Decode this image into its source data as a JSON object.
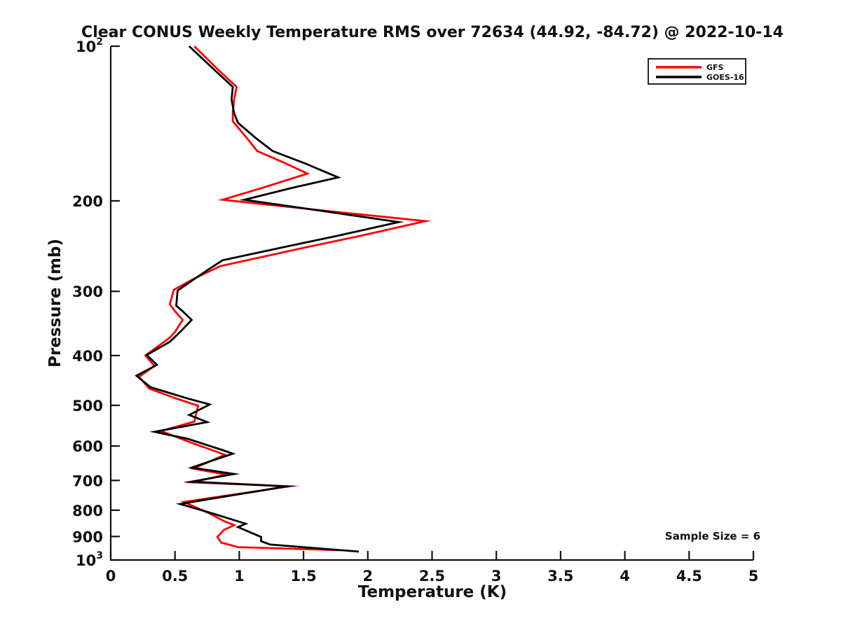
{
  "chart_data": {
    "type": "line",
    "title": "Clear CONUS Weekly Temperature RMS over 72634 (44.92, -84.72) @ 2022-10-14",
    "xlabel": "Temperature (K)",
    "ylabel": "Pressure (mb)",
    "x_axis": {
      "min": 0,
      "max": 5,
      "ticks": [
        0,
        0.5,
        1,
        1.5,
        2,
        2.5,
        3,
        3.5,
        4,
        4.5,
        5
      ],
      "tick_labels": [
        "0",
        "0.5",
        "1",
        "1.5",
        "2",
        "2.5",
        "3",
        "3.5",
        "4",
        "4.5",
        "5"
      ]
    },
    "y_axis": {
      "scale": "log",
      "min": 100,
      "max": 1000,
      "direction": "increasing-downward",
      "ticks": [
        100,
        200,
        300,
        400,
        500,
        600,
        700,
        800,
        900,
        1000
      ],
      "tick_labels": [
        "10^2",
        "200",
        "300",
        "400",
        "500",
        "600",
        "700",
        "800",
        "900",
        "10^3"
      ]
    },
    "legend": {
      "position": "top-right",
      "entries": [
        "GFS",
        "GOES-16"
      ]
    },
    "annotations": {
      "sample_size": "Sample Size = 6"
    },
    "axis_color": "#111111",
    "series": [
      {
        "name": "GFS",
        "color": "#ff0000",
        "points_format": [
          "temperature_K",
          "pressure_mb"
        ],
        "points": [
          [
            0.65,
            100
          ],
          [
            0.85,
            112
          ],
          [
            0.98,
            120
          ],
          [
            0.96,
            127
          ],
          [
            0.95,
            134
          ],
          [
            0.95,
            140
          ],
          [
            1.06,
            151
          ],
          [
            1.14,
            160
          ],
          [
            1.36,
            169
          ],
          [
            1.53,
            177
          ],
          [
            1.17,
            189
          ],
          [
            0.87,
            199
          ],
          [
            1.74,
            210
          ],
          [
            2.45,
            219
          ],
          [
            1.94,
            234
          ],
          [
            1.53,
            246
          ],
          [
            0.85,
            268
          ],
          [
            0.63,
            285
          ],
          [
            0.49,
            298
          ],
          [
            0.46,
            318
          ],
          [
            0.5,
            328
          ],
          [
            0.56,
            341
          ],
          [
            0.5,
            360
          ],
          [
            0.46,
            369
          ],
          [
            0.27,
            400
          ],
          [
            0.34,
            419
          ],
          [
            0.22,
            440
          ],
          [
            0.3,
            464
          ],
          [
            0.51,
            485
          ],
          [
            0.68,
            501
          ],
          [
            0.65,
            538
          ],
          [
            0.39,
            561
          ],
          [
            0.61,
            589
          ],
          [
            0.89,
            624
          ],
          [
            0.64,
            664
          ],
          [
            0.9,
            682
          ],
          [
            0.63,
            706
          ],
          [
            1.39,
            719
          ],
          [
            0.8,
            756
          ],
          [
            0.57,
            771
          ],
          [
            0.76,
            810
          ],
          [
            0.89,
            842
          ],
          [
            0.96,
            855
          ],
          [
            0.88,
            874
          ],
          [
            0.83,
            902
          ],
          [
            0.86,
            925
          ],
          [
            0.99,
            944
          ],
          [
            1.78,
            957
          ]
        ]
      },
      {
        "name": "GOES-16",
        "color": "#000000",
        "points_format": [
          "temperature_K",
          "pressure_mb"
        ],
        "points": [
          [
            0.61,
            100
          ],
          [
            0.82,
            112
          ],
          [
            0.95,
            120
          ],
          [
            0.94,
            127
          ],
          [
            0.96,
            135
          ],
          [
            0.99,
            141
          ],
          [
            1.13,
            151
          ],
          [
            1.26,
            160
          ],
          [
            1.51,
            169
          ],
          [
            1.77,
            180
          ],
          [
            1.4,
            189
          ],
          [
            1.04,
            199
          ],
          [
            1.69,
            210
          ],
          [
            2.24,
            220
          ],
          [
            1.76,
            234
          ],
          [
            1.35,
            246
          ],
          [
            0.87,
            261
          ],
          [
            0.76,
            272
          ],
          [
            0.64,
            285
          ],
          [
            0.52,
            299
          ],
          [
            0.51,
            320
          ],
          [
            0.56,
            328
          ],
          [
            0.63,
            341
          ],
          [
            0.54,
            360
          ],
          [
            0.46,
            376
          ],
          [
            0.28,
            399
          ],
          [
            0.36,
            417
          ],
          [
            0.2,
            438
          ],
          [
            0.31,
            461
          ],
          [
            0.6,
            485
          ],
          [
            0.77,
            498
          ],
          [
            0.61,
            522
          ],
          [
            0.75,
            539
          ],
          [
            0.34,
            563
          ],
          [
            0.6,
            581
          ],
          [
            0.87,
            611
          ],
          [
            0.95,
            621
          ],
          [
            0.63,
            661
          ],
          [
            0.96,
            680
          ],
          [
            0.63,
            704
          ],
          [
            1.37,
            719
          ],
          [
            0.84,
            756
          ],
          [
            0.54,
            778
          ],
          [
            0.78,
            810
          ],
          [
            1.05,
            850
          ],
          [
            0.99,
            863
          ],
          [
            1.17,
            902
          ],
          [
            1.17,
            919
          ],
          [
            1.24,
            933
          ],
          [
            1.93,
            963
          ]
        ]
      }
    ]
  }
}
